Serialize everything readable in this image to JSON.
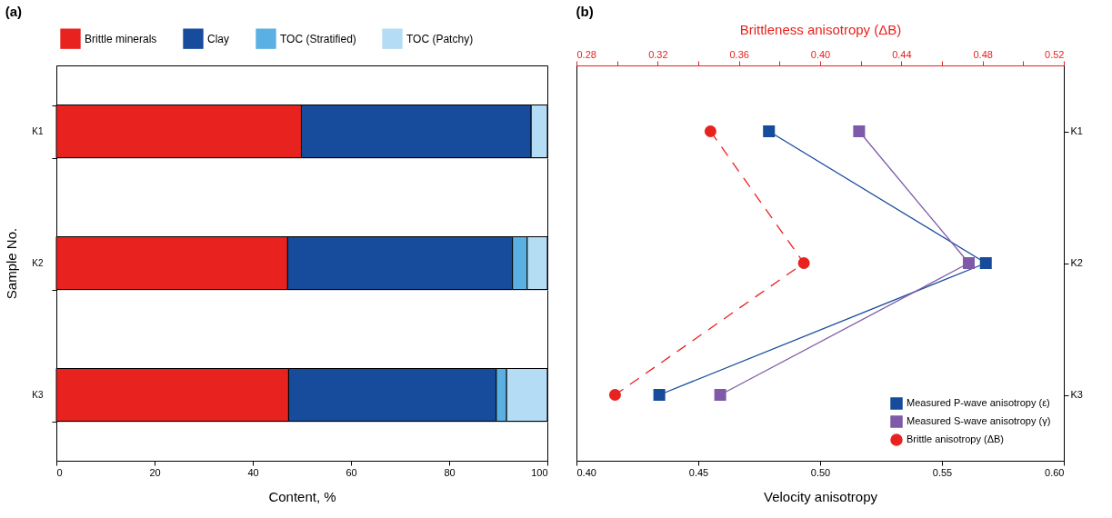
{
  "chart_data": [
    {
      "type": "bar",
      "title": "(a)",
      "xlabel": "Content, %",
      "ylabel": "Sample No.",
      "orientation": "horizontal",
      "stacked": true,
      "categories": [
        "K1",
        "K2",
        "K3"
      ],
      "series": [
        {
          "name": "Brittle minerals",
          "color": "#e8221e",
          "values": [
            49.9,
            47.1,
            47.3
          ]
        },
        {
          "name": "Clay",
          "color": "#174b9b",
          "values": [
            46.8,
            45.8,
            42.3
          ]
        },
        {
          "name": "TOC (Stratified)",
          "color": "#5ab0e2",
          "values": [
            null,
            3.0,
            2.1
          ]
        },
        {
          "name": "TOC (Patchy)",
          "color": "#b4dcf4",
          "values": [
            3.3,
            4.1,
            8.3
          ]
        }
      ],
      "xlim": [
        0,
        100
      ],
      "xticks": [
        0,
        20,
        40,
        60,
        80,
        100
      ],
      "grid": "y",
      "legend": "top"
    },
    {
      "type": "line",
      "title": "(b)",
      "xlabel": "Velocity anisotropy",
      "x2label": "Brittleness anisotropy (ΔB)",
      "orientation": "horizontal",
      "categories": [
        "K1",
        "K2",
        "K3"
      ],
      "series": [
        {
          "name": "Measured P-wave anisotropy (ε)",
          "color": "#174b9b",
          "values": [
            0.479,
            0.568,
            0.434
          ],
          "marker": "square",
          "line_style": "solid"
        },
        {
          "name": "Measured S-wave anisotropy (γ)",
          "color": "#7f5aa8",
          "values": [
            0.516,
            0.561,
            0.459
          ],
          "marker": "square",
          "line_style": "solid"
        },
        {
          "name": "Brittle anisotropy (ΔB)",
          "color": "#e8221e",
          "values": [
            0.346,
            0.392,
            0.299
          ],
          "marker": "circle",
          "line_style": "dashed",
          "axis": "x2"
        }
      ],
      "xlim": [
        0.4,
        0.6
      ],
      "xticks": [
        {
          "value": 0.4,
          "label": "0.40"
        },
        0.45,
        {
          "value": 0.5,
          "label": "0.50"
        },
        0.55,
        {
          "value": 0.6,
          "label": "0.60"
        }
      ],
      "x2lim": [
        0.28,
        0.52
      ],
      "x2ticks": [
        0.28,
        {
          "value": 0.3,
          "label": null
        },
        0.32,
        {
          "value": 0.34,
          "label": null
        },
        0.36,
        {
          "value": 0.38,
          "label": null
        },
        {
          "value": 0.4,
          "label": "0.40"
        },
        {
          "value": 0.42,
          "label": null
        },
        0.44,
        {
          "value": 0.46,
          "label": null
        },
        0.48,
        {
          "value": 0.5,
          "label": null
        },
        0.52
      ],
      "grid": false,
      "legend": "bottom right"
    }
  ]
}
